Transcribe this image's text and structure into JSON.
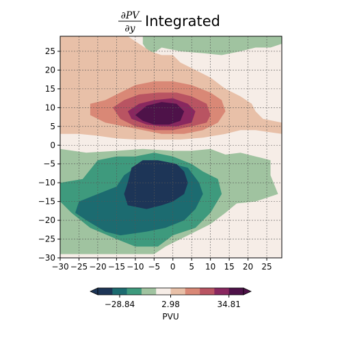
{
  "chart_data": {
    "type": "contourf",
    "title": {
      "numerator": "∂PV",
      "denominator": "∂y",
      "suffix": "Integrated"
    },
    "xlim": [
      -30,
      29
    ],
    "ylim": [
      -30,
      29
    ],
    "xticks": [
      -30,
      -25,
      -20,
      -15,
      -10,
      -5,
      0,
      5,
      10,
      15,
      20,
      25
    ],
    "yticks": [
      -30,
      -25,
      -20,
      -15,
      -10,
      -5,
      0,
      5,
      10,
      15,
      20,
      25
    ],
    "grid": true,
    "colorbar": {
      "label": "PVU",
      "orientation": "horizontal",
      "extend": "both",
      "ticks": [
        -28.84,
        2.98,
        34.81
      ],
      "tick_labels": [
        "−28.84",
        "2.98",
        "34.81"
      ],
      "colors": [
        "#1d3557",
        "#1c6b70",
        "#3e9a7d",
        "#a0c3a0",
        "#f6ede7",
        "#e8c0a8",
        "#d98876",
        "#b95462",
        "#89275f",
        "#4e1249"
      ]
    },
    "regions": [
      {
        "level": "3",
        "color": "#f6ede7",
        "note": "background near-zero"
      },
      {
        "level": "-2",
        "color": "#a0c3a0",
        "points": [
          [
            -30,
            -1
          ],
          [
            -23,
            -2
          ],
          [
            -15,
            -1.5
          ],
          [
            -8,
            -1
          ],
          [
            0,
            -1.5
          ],
          [
            5,
            -1.5
          ],
          [
            10,
            -1
          ],
          [
            14,
            -2.5
          ],
          [
            18,
            -2
          ],
          [
            22,
            -3
          ],
          [
            26,
            -4
          ],
          [
            26,
            -8
          ],
          [
            28,
            -13
          ],
          [
            22,
            -15
          ],
          [
            17,
            -15.5
          ],
          [
            14,
            -18
          ],
          [
            10,
            -21
          ],
          [
            4,
            -24
          ],
          [
            -2,
            -27
          ],
          [
            -5,
            -29
          ],
          [
            -30,
            -29
          ]
        ]
      },
      {
        "level": "-2",
        "color": "#a0c3a0",
        "points": [
          [
            -6,
            24
          ],
          [
            -3,
            26
          ],
          [
            2,
            25
          ],
          [
            8,
            24.5
          ],
          [
            13,
            24
          ],
          [
            18,
            25
          ],
          [
            22,
            26
          ],
          [
            26,
            26
          ],
          [
            29,
            27
          ],
          [
            29,
            29
          ],
          [
            -8,
            29
          ],
          [
            -8,
            27
          ]
        ]
      },
      {
        "level": "-3",
        "color": "#3e9a7d",
        "points": [
          [
            -30,
            -10
          ],
          [
            -24,
            -9
          ],
          [
            -20,
            -4
          ],
          [
            -15,
            -3
          ],
          [
            -10,
            -3
          ],
          [
            -5,
            -2
          ],
          [
            0,
            -3
          ],
          [
            5,
            -5
          ],
          [
            8,
            -7
          ],
          [
            12,
            -9
          ],
          [
            13,
            -13
          ],
          [
            10,
            -18
          ],
          [
            6,
            -22
          ],
          [
            0,
            -24
          ],
          [
            -4,
            -27
          ],
          [
            -10,
            -27
          ],
          [
            -15,
            -25
          ],
          [
            -22,
            -22
          ],
          [
            -27,
            -18
          ],
          [
            -30,
            -15
          ]
        ]
      },
      {
        "level": "-4",
        "color": "#1c6b70",
        "points": [
          [
            -20,
            -13
          ],
          [
            -15,
            -11
          ],
          [
            -13,
            -8
          ],
          [
            -10,
            -6
          ],
          [
            -6,
            -4
          ],
          [
            0,
            -5
          ],
          [
            4,
            -6
          ],
          [
            7,
            -10
          ],
          [
            8,
            -13
          ],
          [
            6,
            -17
          ],
          [
            3,
            -20
          ],
          [
            -2,
            -22
          ],
          [
            -7,
            -23
          ],
          [
            -14,
            -24
          ],
          [
            -18,
            -23
          ],
          [
            -23,
            -20
          ],
          [
            -26,
            -18
          ],
          [
            -25,
            -15
          ]
        ]
      },
      {
        "level": "-5",
        "color": "#1d3557",
        "points": [
          [
            -11,
            -6
          ],
          [
            -8,
            -4
          ],
          [
            -4,
            -4
          ],
          [
            1,
            -5
          ],
          [
            3,
            -7
          ],
          [
            4,
            -10
          ],
          [
            3,
            -13
          ],
          [
            0,
            -15
          ],
          [
            -3,
            -16
          ],
          [
            -7,
            -17
          ],
          [
            -12,
            -16
          ],
          [
            -13,
            -13
          ],
          [
            -12,
            -10
          ]
        ]
      },
      {
        "level": "4",
        "color": "#e8c0a8",
        "points": [
          [
            -30,
            29
          ],
          [
            -12,
            29
          ],
          [
            -9,
            27
          ],
          [
            -6,
            25
          ],
          [
            -3,
            24
          ],
          [
            0,
            24
          ],
          [
            2,
            22
          ],
          [
            6,
            20
          ],
          [
            10,
            18
          ],
          [
            14,
            15
          ],
          [
            18,
            13
          ],
          [
            21,
            11
          ],
          [
            22,
            9
          ],
          [
            24,
            7
          ],
          [
            29,
            6
          ],
          [
            29,
            3
          ],
          [
            22,
            4
          ],
          [
            18,
            4
          ],
          [
            14,
            3
          ],
          [
            8,
            2
          ],
          [
            2,
            1.5
          ],
          [
            -5,
            1.5
          ],
          [
            -10,
            1.5
          ],
          [
            -15,
            1.8
          ],
          [
            -20,
            2.5
          ],
          [
            -25,
            3
          ],
          [
            -30,
            3
          ]
        ]
      },
      {
        "level": "5",
        "color": "#d98876",
        "points": [
          [
            -22,
            11
          ],
          [
            -18,
            12
          ],
          [
            -14,
            14
          ],
          [
            -10,
            16
          ],
          [
            -5,
            17
          ],
          [
            0,
            17
          ],
          [
            5,
            16
          ],
          [
            10,
            14
          ],
          [
            13,
            12
          ],
          [
            14,
            9
          ],
          [
            12,
            6
          ],
          [
            8,
            4
          ],
          [
            3,
            3
          ],
          [
            -3,
            3
          ],
          [
            -8,
            4
          ],
          [
            -13,
            5
          ],
          [
            -18,
            6
          ],
          [
            -22,
            8
          ]
        ]
      },
      {
        "level": "6",
        "color": "#b95462",
        "points": [
          [
            -16,
            10
          ],
          [
            -13,
            12
          ],
          [
            -9,
            13.5
          ],
          [
            -4,
            14
          ],
          [
            1,
            14
          ],
          [
            5,
            13
          ],
          [
            9,
            11
          ],
          [
            10,
            8
          ],
          [
            9,
            6
          ],
          [
            5,
            5
          ],
          [
            0,
            4
          ],
          [
            -5,
            4
          ],
          [
            -10,
            5
          ],
          [
            -14,
            7
          ]
        ]
      },
      {
        "level": "7",
        "color": "#89275f",
        "points": [
          [
            -12,
            9
          ],
          [
            -9,
            11
          ],
          [
            -5,
            12
          ],
          [
            0,
            12.5
          ],
          [
            4,
            11
          ],
          [
            6,
            9
          ],
          [
            5,
            6
          ],
          [
            1,
            5
          ],
          [
            -3,
            5
          ],
          [
            -7,
            5.5
          ],
          [
            -11,
            7
          ]
        ]
      },
      {
        "level": "8",
        "color": "#4e1249",
        "points": [
          [
            -10,
            8
          ],
          [
            -7,
            10.5
          ],
          [
            -3,
            11.5
          ],
          [
            1,
            11
          ],
          [
            3,
            9
          ],
          [
            2,
            6.5
          ],
          [
            -1,
            5.5
          ],
          [
            -5,
            5.5
          ],
          [
            -8,
            6.5
          ]
        ]
      }
    ]
  }
}
